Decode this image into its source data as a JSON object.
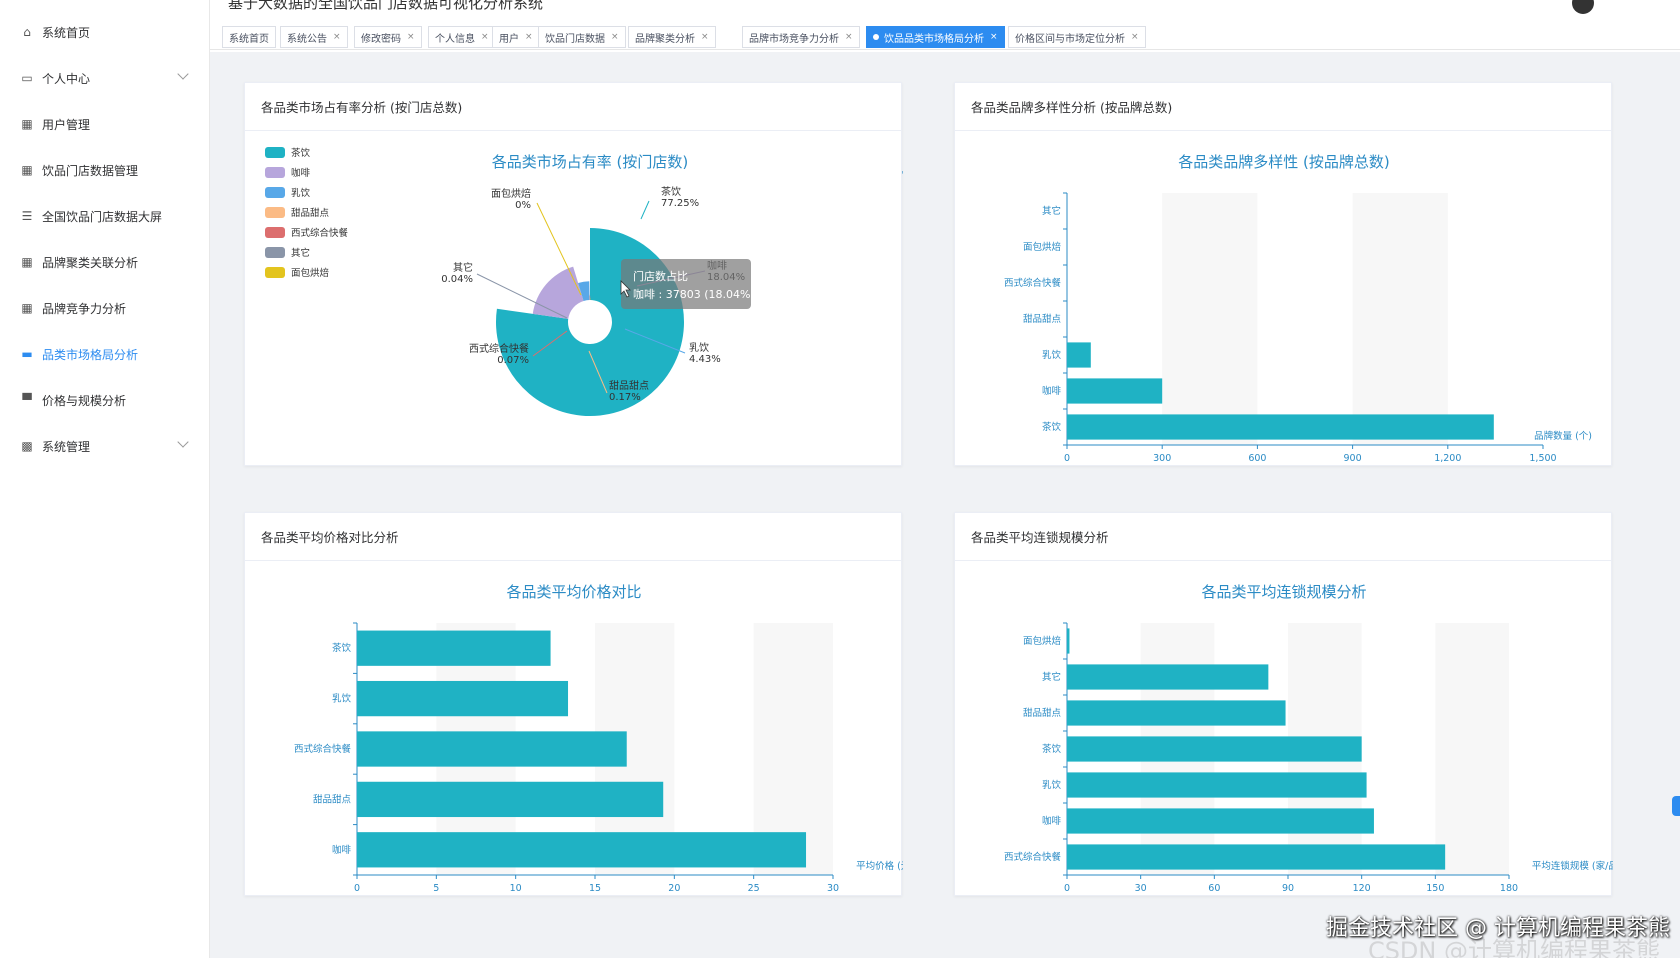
{
  "window": {
    "title": "基于大数据的全国饮品门店数据可视化分析系统"
  },
  "sidebar": {
    "items": [
      {
        "label": "系统首页",
        "icon": "home-icon",
        "active": false,
        "expandable": false
      },
      {
        "label": "个人中心",
        "icon": "profile-icon",
        "active": false,
        "expandable": true
      },
      {
        "label": "用户管理",
        "icon": "grid-icon",
        "active": false,
        "expandable": false
      },
      {
        "label": "饮品门店数据管理",
        "icon": "grid-icon",
        "active": false,
        "expandable": false
      },
      {
        "label": "全国饮品门店数据大屏",
        "icon": "list-icon",
        "active": false,
        "expandable": false
      },
      {
        "label": "品牌聚类关联分析",
        "icon": "grid-icon",
        "active": false,
        "expandable": false
      },
      {
        "label": "品牌竞争力分析",
        "icon": "grid-icon",
        "active": false,
        "expandable": false
      },
      {
        "label": "品类市场格局分析",
        "icon": "chat-icon",
        "active": true,
        "expandable": false
      },
      {
        "label": "价格与规模分析",
        "icon": "monitor-icon",
        "active": false,
        "expandable": false
      },
      {
        "label": "系统管理",
        "icon": "ticket-icon",
        "active": false,
        "expandable": true
      }
    ]
  },
  "tabs": [
    {
      "label": "系统首页",
      "closable": false,
      "active": false
    },
    {
      "label": "系统公告",
      "closable": true,
      "active": false
    },
    {
      "label": "修改密码",
      "closable": true,
      "active": false
    },
    {
      "label": "个人信息",
      "closable": true,
      "active": false
    },
    {
      "label": "用户",
      "closable": true,
      "active": false
    },
    {
      "label": "饮品门店数据",
      "closable": true,
      "active": false
    },
    {
      "label": "品牌聚类分析",
      "closable": true,
      "active": false
    },
    {
      "label": "品牌市场竞争力分析",
      "closable": true,
      "active": false
    },
    {
      "label": "饮品品类市场格局分析",
      "closable": true,
      "active": true
    },
    {
      "label": "价格区间与市场定位分析",
      "closable": true,
      "active": false
    }
  ],
  "cards": {
    "share": {
      "header": "各品类市场占有率分析 (按门店总数)"
    },
    "diversity": {
      "header": "各品类品牌多样性分析 (按品牌总数)"
    },
    "price": {
      "header": "各品类平均价格对比分析"
    },
    "chain": {
      "header": "各品类平均连锁规模分析"
    }
  },
  "colors": {
    "accent": "#2d8cf0",
    "bar": "#1fb2c4",
    "title": "#2b8bc5"
  },
  "chart_data": [
    {
      "id": "share",
      "type": "pie",
      "title": "各品类市场占有率 (按门店数)",
      "rose_type": "radius",
      "legend": {
        "position": "top-left"
      },
      "slices": [
        {
          "name": "茶饮",
          "percent": 77.25,
          "label": "77.25%",
          "color": "#1fb2c4"
        },
        {
          "name": "咖啡",
          "percent": 18.04,
          "label": "18.04%",
          "color": "#b7a6dc"
        },
        {
          "name": "乳饮",
          "percent": 4.43,
          "label": "4.43%",
          "color": "#58a8e8"
        },
        {
          "name": "甜品甜点",
          "percent": 0.17,
          "label": "0.17%",
          "color": "#fbbb85"
        },
        {
          "name": "西式综合快餐",
          "percent": 0.07,
          "label": "0.07%",
          "color": "#dc6e6e"
        },
        {
          "name": "其它",
          "percent": 0.04,
          "label": "0.04%",
          "color": "#8a95a8"
        },
        {
          "name": "面包烘焙",
          "percent": 0,
          "label": "0%",
          "color": "#e3c41e"
        }
      ],
      "tooltip": {
        "title": "门店数占比",
        "text": "咖啡 : 37803 (18.04%)"
      }
    },
    {
      "id": "diversity",
      "type": "bar",
      "orientation": "horizontal",
      "title": "各品类品牌多样性 (按品牌总数)",
      "xlabel": "品牌数量 (个)",
      "xlim": [
        0,
        1500
      ],
      "xticks": [
        "0",
        "300",
        "600",
        "900",
        "1,200",
        "1,500"
      ],
      "categories": [
        "其它",
        "面包烘焙",
        "西式综合快餐",
        "甜品甜点",
        "乳饮",
        "咖啡",
        "茶饮"
      ],
      "values": [
        0,
        0,
        0,
        0,
        75,
        300,
        1345
      ]
    },
    {
      "id": "price",
      "type": "bar",
      "orientation": "horizontal",
      "title": "各品类平均价格对比",
      "xlabel": "平均价格 (元)",
      "xlim": [
        0,
        30
      ],
      "xticks": [
        "0",
        "5",
        "10",
        "15",
        "20",
        "25",
        "30"
      ],
      "categories": [
        "茶饮",
        "乳饮",
        "西式综合快餐",
        "甜品甜点",
        "咖啡"
      ],
      "values": [
        12.2,
        13.3,
        17.0,
        19.3,
        28.3
      ]
    },
    {
      "id": "chain",
      "type": "bar",
      "orientation": "horizontal",
      "title": "各品类平均连锁规模分析",
      "xlabel": "平均连锁规模 (家/品牌)",
      "xlim": [
        0,
        180
      ],
      "xticks": [
        "0",
        "30",
        "60",
        "90",
        "120",
        "150",
        "180"
      ],
      "categories": [
        "面包烘焙",
        "其它",
        "甜品甜点",
        "茶饮",
        "乳饮",
        "咖啡",
        "西式综合快餐"
      ],
      "values": [
        1,
        82,
        89,
        120,
        122,
        125,
        154
      ]
    }
  ],
  "watermark": {
    "main": "掘金技术社区 @ 计算机编程果茶熊",
    "sub": "CSDN @计算机编程果茶熊"
  }
}
